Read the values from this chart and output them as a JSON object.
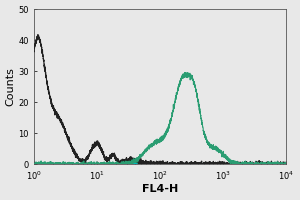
{
  "title": "",
  "xlabel": "FL4-H",
  "ylabel": "Counts",
  "xlim_log": [
    0,
    4
  ],
  "ylim": [
    0,
    50
  ],
  "yticks": [
    0,
    10,
    20,
    30,
    40,
    50
  ],
  "black_color": "#222222",
  "teal_color": "#2a9d72",
  "baseline_color": "#00bbbb",
  "fig_bg": "#e8e8e8",
  "plot_bg": "#e8e8e8"
}
